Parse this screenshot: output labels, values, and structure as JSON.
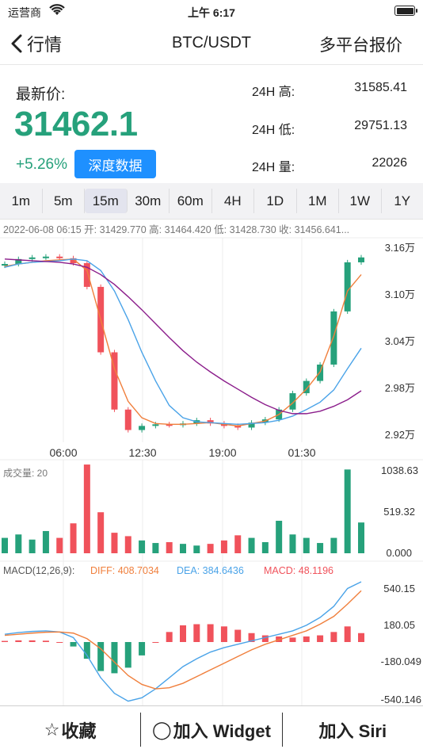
{
  "status_bar": {
    "carrier": "运营商",
    "time": "上午 6:17"
  },
  "nav": {
    "back_label": "行情",
    "title": "BTC/USDT",
    "right_label": "多平台报价"
  },
  "price": {
    "label": "最新价:",
    "value": "31462.1",
    "change": "+5.26%",
    "depth_button": "深度数据",
    "stats": [
      {
        "label": "24H 高:",
        "value": "31585.41"
      },
      {
        "label": "24H 低:",
        "value": "29751.13"
      },
      {
        "label": "24H 量:",
        "value": "22026"
      }
    ]
  },
  "intervals": {
    "items": [
      "1m",
      "5m",
      "15m",
      "30m",
      "60m",
      "4H",
      "1D",
      "1M",
      "1W",
      "1Y"
    ],
    "active": "15m"
  },
  "kline": {
    "info_bar": "2022-06-08 06:15  开: 31429.770  高: 31464.420  低: 31428.730  收: 31456.641...",
    "y_ticks": [
      "3.16万",
      "3.10万",
      "3.04万",
      "2.98万",
      "2.92万"
    ],
    "x_ticks": [
      "06:00",
      "12:30",
      "19:00",
      "01:30"
    ],
    "colors": {
      "up": "#26a17b",
      "down": "#f0525b",
      "ma_fast": "#f07f3c",
      "ma_mid": "#4aa3e8",
      "ma_slow": "#8b1d8b"
    }
  },
  "volume": {
    "label": "成交量: 20",
    "y_ticks": [
      "1038.63",
      "519.32",
      "0.000"
    ]
  },
  "macd": {
    "label": "MACD(12,26,9):",
    "diff": "DIFF: 408.7034",
    "dea": "DEA: 384.6436",
    "macd": "MACD: 48.1196",
    "y_ticks": [
      "540.15",
      "180.05",
      "-180.049",
      "-540.146"
    ]
  },
  "chart_data": [
    {
      "type": "candlestick",
      "title": "",
      "xlabel": "",
      "ylabel": "",
      "x_ticks": [
        "06:00",
        "12:30",
        "19:00",
        "01:30"
      ],
      "y_tick_labels": [
        "3.16万",
        "3.10万",
        "3.04万",
        "2.98万",
        "2.92万"
      ],
      "ylim": [
        29200,
        31700
      ],
      "series": [
        {
          "values": [
            31380,
            31440,
            31460,
            31470,
            31450,
            31390,
            31100,
            30300,
            29600,
            29350,
            29400,
            29420,
            29410,
            29430,
            29470,
            29430,
            29400,
            29380,
            29440,
            29480,
            29600,
            29800,
            29950,
            30150,
            30800,
            31400,
            31460
          ]
        },
        {
          "values": [
            31350,
            31380,
            31400,
            31420,
            31430,
            31440,
            31300,
            30700,
            30100,
            29700,
            29500,
            29430,
            29420,
            29420,
            29430,
            29440,
            29420,
            29400,
            29430,
            29460,
            29540,
            29680,
            29850,
            30060,
            30500,
            31050,
            31250
          ]
        },
        {
          "values": [
            31340,
            31380,
            31400,
            31410,
            31420,
            31440,
            31420,
            31300,
            31050,
            30700,
            30300,
            29950,
            29650,
            29500,
            29450,
            29440,
            29430,
            29420,
            29430,
            29440,
            29470,
            29520,
            29600,
            29690,
            29840,
            30100,
            30350
          ]
        },
        {
          "values": [
            31440,
            31430,
            31420,
            31410,
            31400,
            31380,
            31340,
            31250,
            31130,
            30980,
            30820,
            30650,
            30480,
            30320,
            30180,
            30060,
            29950,
            29850,
            29750,
            29660,
            29590,
            29550,
            29550,
            29580,
            29640,
            29720,
            29830
          ]
        }
      ]
    },
    {
      "type": "bar",
      "title": "成交量",
      "ylim": [
        0,
        1038.63
      ],
      "series": [
        {
          "values": [
            180,
            220,
            160,
            260,
            180,
            350,
            1038,
            480,
            240,
            200,
            150,
            120,
            130,
            110,
            90,
            110,
            150,
            210,
            180,
            130,
            380,
            220,
            180,
            120,
            180,
            980,
            360
          ]
        }
      ]
    },
    {
      "type": "bar",
      "title": "MACD",
      "ylim": [
        -540.146,
        540.15
      ],
      "series": [
        {
          "name": "DIFF",
          "values": [
            70,
            85,
            95,
            100,
            90,
            40,
            -120,
            -320,
            -460,
            -530,
            -500,
            -420,
            -320,
            -220,
            -150,
            -90,
            -50,
            -20,
            10,
            40,
            70,
            100,
            150,
            220,
            320,
            480,
            540
          ]
        },
        {
          "name": "DEA",
          "values": [
            60,
            70,
            80,
            88,
            90,
            80,
            30,
            -60,
            -180,
            -300,
            -380,
            -420,
            -410,
            -370,
            -310,
            -250,
            -190,
            -130,
            -70,
            -20,
            20,
            60,
            100,
            160,
            230,
            340,
            460
          ]
        },
        {
          "name": "MACD",
          "values": [
            10,
            15,
            15,
            12,
            0,
            -40,
            -150,
            -260,
            -280,
            -230,
            -120,
            0,
            90,
            150,
            160,
            160,
            140,
            110,
            80,
            60,
            50,
            40,
            50,
            60,
            90,
            140,
            80
          ]
        }
      ]
    }
  ]
}
